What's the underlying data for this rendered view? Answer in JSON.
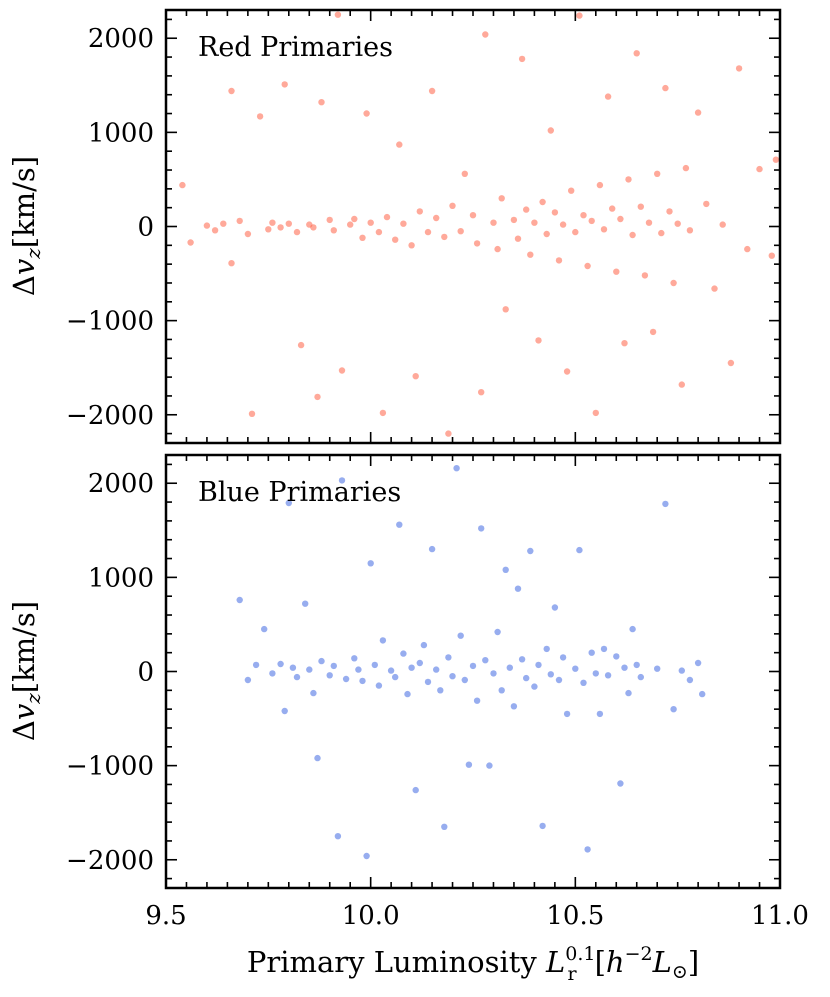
{
  "chart_data": [
    {
      "type": "scatter",
      "panel": "top",
      "annotation": "Red Primaries",
      "color": "#FF6347",
      "xlim": [
        9.5,
        11.0
      ],
      "ylim": [
        -2300,
        2300
      ],
      "xticks": [
        "9.5",
        "10.0",
        "10.5",
        "11.0"
      ],
      "yticks": [
        "2000",
        "1000",
        "0",
        "−1000",
        "−2000"
      ],
      "ytick_values": [
        2000,
        1000,
        0,
        -1000,
        -2000
      ],
      "xtick_values": [
        9.5,
        10.0,
        10.5,
        11.0
      ],
      "ylabel": "Δv_z[km/s]",
      "ylabel_parts": {
        "delta": "Δ",
        "var": "v",
        "sub": "z",
        "unit": "[km/s]"
      },
      "points": [
        [
          9.54,
          440
        ],
        [
          9.56,
          -170
        ],
        [
          9.6,
          10
        ],
        [
          9.62,
          -40
        ],
        [
          9.64,
          30
        ],
        [
          9.66,
          -390
        ],
        [
          9.66,
          1440
        ],
        [
          9.68,
          60
        ],
        [
          9.7,
          -80
        ],
        [
          9.71,
          -1990
        ],
        [
          9.73,
          1170
        ],
        [
          9.75,
          -30
        ],
        [
          9.76,
          40
        ],
        [
          9.78,
          -10
        ],
        [
          9.79,
          1510
        ],
        [
          9.8,
          30
        ],
        [
          9.82,
          -60
        ],
        [
          9.83,
          -1260
        ],
        [
          9.85,
          20
        ],
        [
          9.86,
          -10
        ],
        [
          9.87,
          -1810
        ],
        [
          9.88,
          1320
        ],
        [
          9.9,
          70
        ],
        [
          9.91,
          -40
        ],
        [
          9.92,
          2250
        ],
        [
          9.93,
          -1530
        ],
        [
          9.95,
          20
        ],
        [
          9.96,
          80
        ],
        [
          9.98,
          -120
        ],
        [
          9.99,
          1200
        ],
        [
          10.0,
          40
        ],
        [
          10.02,
          -60
        ],
        [
          10.03,
          -1980
        ],
        [
          10.04,
          100
        ],
        [
          10.06,
          -140
        ],
        [
          10.07,
          870
        ],
        [
          10.08,
          30
        ],
        [
          10.1,
          -200
        ],
        [
          10.11,
          -1590
        ],
        [
          10.12,
          160
        ],
        [
          10.14,
          -60
        ],
        [
          10.15,
          1440
        ],
        [
          10.16,
          90
        ],
        [
          10.18,
          -110
        ],
        [
          10.19,
          -2200
        ],
        [
          10.2,
          220
        ],
        [
          10.22,
          -50
        ],
        [
          10.23,
          560
        ],
        [
          10.25,
          120
        ],
        [
          10.26,
          -180
        ],
        [
          10.27,
          -1760
        ],
        [
          10.28,
          2040
        ],
        [
          10.3,
          40
        ],
        [
          10.31,
          -240
        ],
        [
          10.32,
          300
        ],
        [
          10.33,
          -880
        ],
        [
          10.35,
          70
        ],
        [
          10.36,
          -130
        ],
        [
          10.37,
          1780
        ],
        [
          10.38,
          180
        ],
        [
          10.39,
          -300
        ],
        [
          10.4,
          40
        ],
        [
          10.41,
          -1210
        ],
        [
          10.42,
          260
        ],
        [
          10.43,
          -80
        ],
        [
          10.44,
          1020
        ],
        [
          10.45,
          150
        ],
        [
          10.46,
          -360
        ],
        [
          10.47,
          20
        ],
        [
          10.48,
          -1540
        ],
        [
          10.49,
          380
        ],
        [
          10.5,
          -60
        ],
        [
          10.51,
          2240
        ],
        [
          10.52,
          120
        ],
        [
          10.53,
          -420
        ],
        [
          10.54,
          60
        ],
        [
          10.55,
          -1980
        ],
        [
          10.56,
          440
        ],
        [
          10.57,
          -30
        ],
        [
          10.58,
          1380
        ],
        [
          10.59,
          190
        ],
        [
          10.6,
          -480
        ],
        [
          10.61,
          80
        ],
        [
          10.62,
          -1240
        ],
        [
          10.63,
          500
        ],
        [
          10.64,
          -90
        ],
        [
          10.65,
          1840
        ],
        [
          10.66,
          210
        ],
        [
          10.67,
          -520
        ],
        [
          10.68,
          40
        ],
        [
          10.69,
          -1120
        ],
        [
          10.7,
          560
        ],
        [
          10.71,
          -70
        ],
        [
          10.72,
          1470
        ],
        [
          10.73,
          160
        ],
        [
          10.74,
          -600
        ],
        [
          10.75,
          30
        ],
        [
          10.76,
          -1680
        ],
        [
          10.77,
          620
        ],
        [
          10.78,
          -40
        ],
        [
          10.8,
          1210
        ],
        [
          10.82,
          240
        ],
        [
          10.84,
          -660
        ],
        [
          10.86,
          20
        ],
        [
          10.88,
          -1450
        ],
        [
          10.9,
          1680
        ],
        [
          10.92,
          -240
        ],
        [
          10.95,
          610
        ],
        [
          10.98,
          -310
        ],
        [
          10.99,
          710
        ]
      ]
    },
    {
      "type": "scatter",
      "panel": "bottom",
      "annotation": "Blue Primaries",
      "color": "#4169E1",
      "xlim": [
        9.5,
        11.0
      ],
      "ylim": [
        -2300,
        2300
      ],
      "xticks": [
        "9.5",
        "10.0",
        "10.5",
        "11.0"
      ],
      "yticks": [
        "2000",
        "1000",
        "0",
        "−1000",
        "−2000"
      ],
      "ytick_values": [
        2000,
        1000,
        0,
        -1000,
        -2000
      ],
      "xtick_values": [
        9.5,
        10.0,
        10.5,
        11.0
      ],
      "ylabel": "Δv_z[km/s]",
      "ylabel_parts": {
        "delta": "Δ",
        "var": "v",
        "sub": "z",
        "unit": "[km/s]"
      },
      "xlabel_parts": {
        "prefix": "Primary Luminosity ",
        "var": "L",
        "sup": "0.1",
        "sub": "r",
        "unit_open": "[",
        "h": "h",
        "hexp": "−2",
        "L": "L",
        "sun": "⊙",
        "unit_close": "]"
      },
      "points": [
        [
          9.68,
          760
        ],
        [
          9.7,
          -90
        ],
        [
          9.72,
          70
        ],
        [
          9.74,
          450
        ],
        [
          9.76,
          -20
        ],
        [
          9.78,
          80
        ],
        [
          9.79,
          -420
        ],
        [
          9.8,
          1790
        ],
        [
          9.81,
          40
        ],
        [
          9.82,
          -60
        ],
        [
          9.84,
          720
        ],
        [
          9.85,
          20
        ],
        [
          9.86,
          -230
        ],
        [
          9.87,
          -920
        ],
        [
          9.88,
          110
        ],
        [
          9.9,
          -40
        ],
        [
          9.91,
          60
        ],
        [
          9.92,
          -1750
        ],
        [
          9.93,
          2030
        ],
        [
          9.94,
          -80
        ],
        [
          9.96,
          140
        ],
        [
          9.97,
          20
        ],
        [
          9.98,
          -100
        ],
        [
          9.99,
          -1960
        ],
        [
          10.0,
          1150
        ],
        [
          10.01,
          70
        ],
        [
          10.02,
          -150
        ],
        [
          10.03,
          330
        ],
        [
          10.05,
          10
        ],
        [
          10.06,
          -60
        ],
        [
          10.07,
          1560
        ],
        [
          10.08,
          190
        ],
        [
          10.09,
          -240
        ],
        [
          10.1,
          40
        ],
        [
          10.11,
          -1260
        ],
        [
          10.12,
          90
        ],
        [
          10.13,
          280
        ],
        [
          10.14,
          -110
        ],
        [
          10.15,
          1300
        ],
        [
          10.16,
          20
        ],
        [
          10.17,
          -200
        ],
        [
          10.18,
          -1650
        ],
        [
          10.19,
          150
        ],
        [
          10.2,
          -50
        ],
        [
          10.21,
          2160
        ],
        [
          10.22,
          380
        ],
        [
          10.23,
          -90
        ],
        [
          10.24,
          -990
        ],
        [
          10.25,
          60
        ],
        [
          10.26,
          -310
        ],
        [
          10.27,
          1520
        ],
        [
          10.28,
          120
        ],
        [
          10.29,
          -1000
        ],
        [
          10.3,
          -20
        ],
        [
          10.31,
          420
        ],
        [
          10.32,
          -200
        ],
        [
          10.33,
          1080
        ],
        [
          10.34,
          40
        ],
        [
          10.35,
          -370
        ],
        [
          10.36,
          880
        ],
        [
          10.37,
          130
        ],
        [
          10.38,
          -70
        ],
        [
          10.39,
          1280
        ],
        [
          10.4,
          -160
        ],
        [
          10.41,
          70
        ],
        [
          10.42,
          -1640
        ],
        [
          10.43,
          240
        ],
        [
          10.44,
          -30
        ],
        [
          10.45,
          680
        ],
        [
          10.46,
          -90
        ],
        [
          10.47,
          150
        ],
        [
          10.48,
          -450
        ],
        [
          10.5,
          30
        ],
        [
          10.51,
          1290
        ],
        [
          10.52,
          -120
        ],
        [
          10.53,
          -1890
        ],
        [
          10.54,
          200
        ],
        [
          10.55,
          -20
        ],
        [
          10.56,
          -450
        ],
        [
          10.57,
          240
        ],
        [
          10.58,
          -40
        ],
        [
          10.6,
          160
        ],
        [
          10.61,
          -1190
        ],
        [
          10.62,
          40
        ],
        [
          10.63,
          -230
        ],
        [
          10.64,
          450
        ],
        [
          10.65,
          70
        ],
        [
          10.66,
          -60
        ],
        [
          10.7,
          30
        ],
        [
          10.72,
          1780
        ],
        [
          10.74,
          -400
        ],
        [
          10.76,
          10
        ],
        [
          10.78,
          -90
        ],
        [
          10.8,
          90
        ],
        [
          10.81,
          -240
        ]
      ]
    }
  ]
}
